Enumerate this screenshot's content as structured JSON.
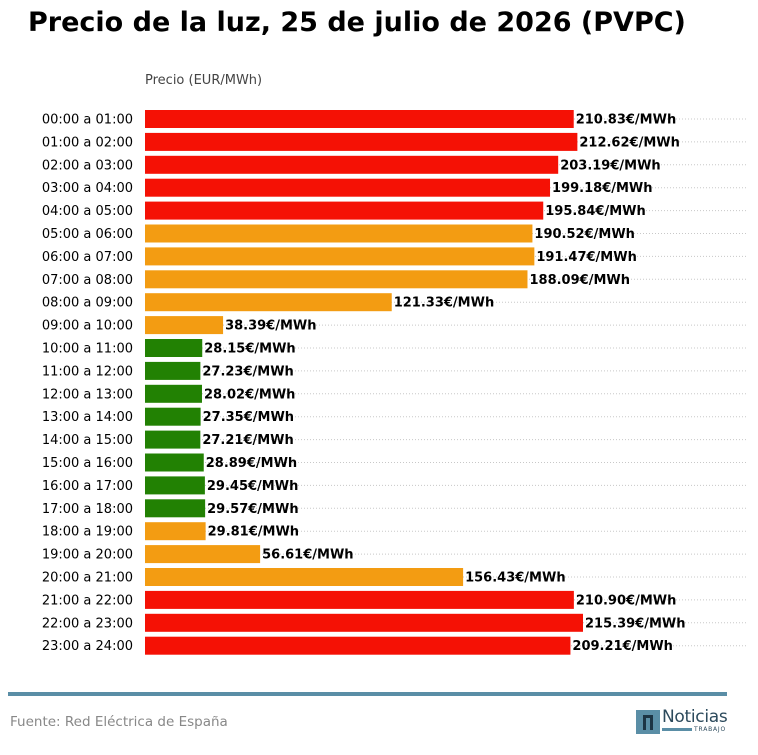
{
  "title": "Precio de la luz, 25 de julio de 2026 (PVPC)",
  "source": "Fuente: Red Eléctrica de España",
  "logo": {
    "name": "Noticias",
    "sub": "TRABAJO"
  },
  "colors": {
    "high": "#f51105",
    "mid": "#f39c12",
    "low": "#228103",
    "divider": "#5a8ea6"
  },
  "chart_data": {
    "type": "bar",
    "orientation": "horizontal",
    "title": "Precio de la luz, 25 de julio de 2026 (PVPC)",
    "xlabel": "Precio (EUR/MWh)",
    "ylabel": "",
    "unit_suffix": "€/MWh",
    "xlim": [
      0,
      220
    ],
    "grid": "dotted horizontal",
    "categories": [
      "00:00 a 01:00",
      "01:00 a 02:00",
      "02:00 a 03:00",
      "03:00 a 04:00",
      "04:00 a 05:00",
      "05:00 a 06:00",
      "06:00 a 07:00",
      "07:00 a 08:00",
      "08:00 a 09:00",
      "09:00 a 10:00",
      "10:00 a 11:00",
      "11:00 a 12:00",
      "12:00 a 13:00",
      "13:00 a 14:00",
      "14:00 a 15:00",
      "15:00 a 16:00",
      "16:00 a 17:00",
      "17:00 a 18:00",
      "18:00 a 19:00",
      "19:00 a 20:00",
      "20:00 a 21:00",
      "21:00 a 22:00",
      "22:00 a 23:00",
      "23:00 a 24:00"
    ],
    "values": [
      210.83,
      212.62,
      203.19,
      199.18,
      195.84,
      190.52,
      191.47,
      188.09,
      121.33,
      38.39,
      28.15,
      27.23,
      28.02,
      27.35,
      27.21,
      28.89,
      29.45,
      29.57,
      29.81,
      56.61,
      156.43,
      210.9,
      215.39,
      209.21
    ],
    "labels": [
      "210.83€/MWh",
      "212.62€/MWh",
      "203.19€/MWh",
      "199.18€/MWh",
      "195.84€/MWh",
      "190.52€/MWh",
      "191.47€/MWh",
      "188.09€/MWh",
      "121.33€/MWh",
      "38.39€/MWh",
      "28.15€/MWh",
      "27.23€/MWh",
      "28.02€/MWh",
      "27.35€/MWh",
      "27.21€/MWh",
      "28.89€/MWh",
      "29.45€/MWh",
      "29.57€/MWh",
      "29.81€/MWh",
      "56.61€/MWh",
      "156.43€/MWh",
      "210.90€/MWh",
      "215.39€/MWh",
      "209.21€/MWh"
    ],
    "levels": [
      "high",
      "high",
      "high",
      "high",
      "high",
      "mid",
      "mid",
      "mid",
      "mid",
      "mid",
      "low",
      "low",
      "low",
      "low",
      "low",
      "low",
      "low",
      "low",
      "mid",
      "mid",
      "mid",
      "high",
      "high",
      "high"
    ]
  }
}
